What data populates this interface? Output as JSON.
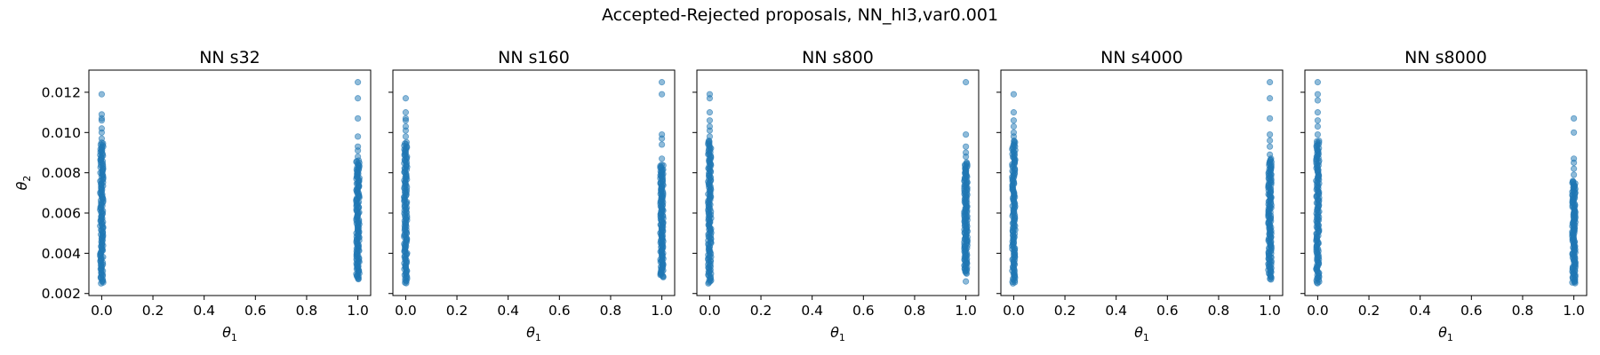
{
  "figure": {
    "title": "Accepted-Rejected proposals, NN_hl3,var0.001"
  },
  "chart_data": {
    "type": "scatter",
    "xlabel_text": "θ",
    "xlabel_sub": "1",
    "ylabel_text": "θ",
    "ylabel_sub": "2",
    "xlim": [
      -0.05,
      1.05
    ],
    "ylim": [
      0.0019,
      0.0131
    ],
    "xticks": [
      0.0,
      0.2,
      0.4,
      0.6,
      0.8,
      1.0
    ],
    "xtick_labels": [
      "0.0",
      "0.2",
      "0.4",
      "0.6",
      "0.8",
      "1.0"
    ],
    "yticks": [
      0.002,
      0.004,
      0.006,
      0.008,
      0.01,
      0.012
    ],
    "ytick_labels": [
      "0.002",
      "0.004",
      "0.006",
      "0.008",
      "0.010",
      "0.012"
    ],
    "sharey": true,
    "color": "#1f77b4",
    "panels": [
      {
        "title": "NN s32",
        "x0_band": [
          0.0025,
          0.0095
        ],
        "x0_outliers": [
          0.0097,
          0.01,
          0.0102,
          0.0106,
          0.0107,
          0.0109,
          0.0119
        ],
        "x1_band": [
          0.0027,
          0.0086
        ],
        "x1_outliers": [
          0.0088,
          0.0091,
          0.0093,
          0.0098,
          0.0107,
          0.0117,
          0.0125
        ]
      },
      {
        "title": "NN s160",
        "x0_band": [
          0.0025,
          0.0095
        ],
        "x0_outliers": [
          0.0098,
          0.0101,
          0.0103,
          0.0106,
          0.0107,
          0.011,
          0.0117
        ],
        "x1_band": [
          0.0028,
          0.0084
        ],
        "x1_outliers": [
          0.0087,
          0.0094,
          0.0097,
          0.0099,
          0.0119,
          0.0125
        ]
      },
      {
        "title": "NN s800",
        "x0_band": [
          0.0025,
          0.0096
        ],
        "x0_outliers": [
          0.0098,
          0.0101,
          0.0103,
          0.0106,
          0.011,
          0.0117,
          0.0119
        ],
        "x1_band": [
          0.003,
          0.0085
        ],
        "x1_outliers": [
          0.0026,
          0.0088,
          0.009,
          0.0093,
          0.0099,
          0.0125
        ]
      },
      {
        "title": "NN s4000",
        "x0_band": [
          0.0025,
          0.0096
        ],
        "x0_outliers": [
          0.0098,
          0.01,
          0.0103,
          0.0106,
          0.011,
          0.0119
        ],
        "x1_band": [
          0.0027,
          0.0087
        ],
        "x1_outliers": [
          0.0089,
          0.0093,
          0.0096,
          0.0099,
          0.0107,
          0.0117,
          0.0125
        ]
      },
      {
        "title": "NN s8000",
        "x0_band": [
          0.0025,
          0.0096
        ],
        "x0_outliers": [
          0.0099,
          0.0103,
          0.0106,
          0.011,
          0.0116,
          0.0119,
          0.0125
        ],
        "x1_band": [
          0.0025,
          0.0076
        ],
        "x1_outliers": [
          0.0079,
          0.0082,
          0.0085,
          0.0087,
          0.01,
          0.0107
        ]
      }
    ]
  }
}
